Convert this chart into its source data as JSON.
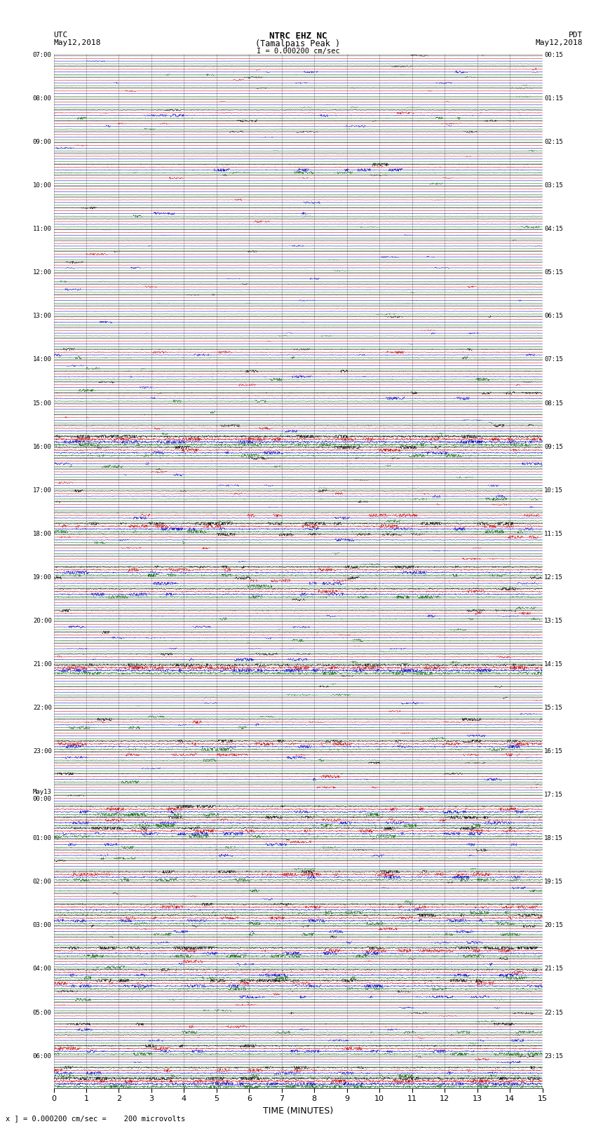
{
  "title_line1": "NTRC EHZ NC",
  "title_line2": "(Tamalpais Peak )",
  "title_line3": "I = 0.000200 cm/sec",
  "xlabel": "TIME (MINUTES)",
  "footer": "x ] = 0.000200 cm/sec =    200 microvolts",
  "x_min": 0,
  "x_max": 15,
  "x_ticks": [
    0,
    1,
    2,
    3,
    4,
    5,
    6,
    7,
    8,
    9,
    10,
    11,
    12,
    13,
    14,
    15
  ],
  "bg_color": "#ffffff",
  "grid_color": "#999999",
  "trace_colors": [
    "#000000",
    "#cc0000",
    "#0000cc",
    "#006600"
  ],
  "utc_labels": [
    "07:00",
    "",
    "",
    "",
    "08:00",
    "",
    "",
    "",
    "09:00",
    "",
    "",
    "",
    "10:00",
    "",
    "",
    "",
    "11:00",
    "",
    "",
    "",
    "12:00",
    "",
    "",
    "",
    "13:00",
    "",
    "",
    "",
    "14:00",
    "",
    "",
    "",
    "15:00",
    "",
    "",
    "",
    "16:00",
    "",
    "",
    "",
    "17:00",
    "",
    "",
    "",
    "18:00",
    "",
    "",
    "",
    "19:00",
    "",
    "",
    "",
    "20:00",
    "",
    "",
    "",
    "21:00",
    "",
    "",
    "",
    "22:00",
    "",
    "",
    "",
    "23:00",
    "",
    "",
    "",
    "May13\n00:00",
    "",
    "",
    "",
    "01:00",
    "",
    "",
    "",
    "02:00",
    "",
    "",
    "",
    "03:00",
    "",
    "",
    "",
    "04:00",
    "",
    "",
    "",
    "05:00",
    "",
    "",
    "",
    "06:00",
    "",
    ""
  ],
  "pdt_labels": [
    "00:15",
    "",
    "",
    "",
    "01:15",
    "",
    "",
    "",
    "02:15",
    "",
    "",
    "",
    "03:15",
    "",
    "",
    "",
    "04:15",
    "",
    "",
    "",
    "05:15",
    "",
    "",
    "",
    "06:15",
    "",
    "",
    "",
    "07:15",
    "",
    "",
    "",
    "08:15",
    "",
    "",
    "",
    "09:15",
    "",
    "",
    "",
    "10:15",
    "",
    "",
    "",
    "11:15",
    "",
    "",
    "",
    "12:15",
    "",
    "",
    "",
    "13:15",
    "",
    "",
    "",
    "14:15",
    "",
    "",
    "",
    "15:15",
    "",
    "",
    "",
    "16:15",
    "",
    "",
    "",
    "17:15",
    "",
    "",
    "",
    "18:15",
    "",
    "",
    "",
    "19:15",
    "",
    "",
    "",
    "20:15",
    "",
    "",
    "",
    "21:15",
    "",
    "",
    "",
    "22:15",
    "",
    "",
    "",
    "23:15",
    "",
    ""
  ],
  "num_rows": 95,
  "traces_per_row": 4,
  "seed": 42
}
